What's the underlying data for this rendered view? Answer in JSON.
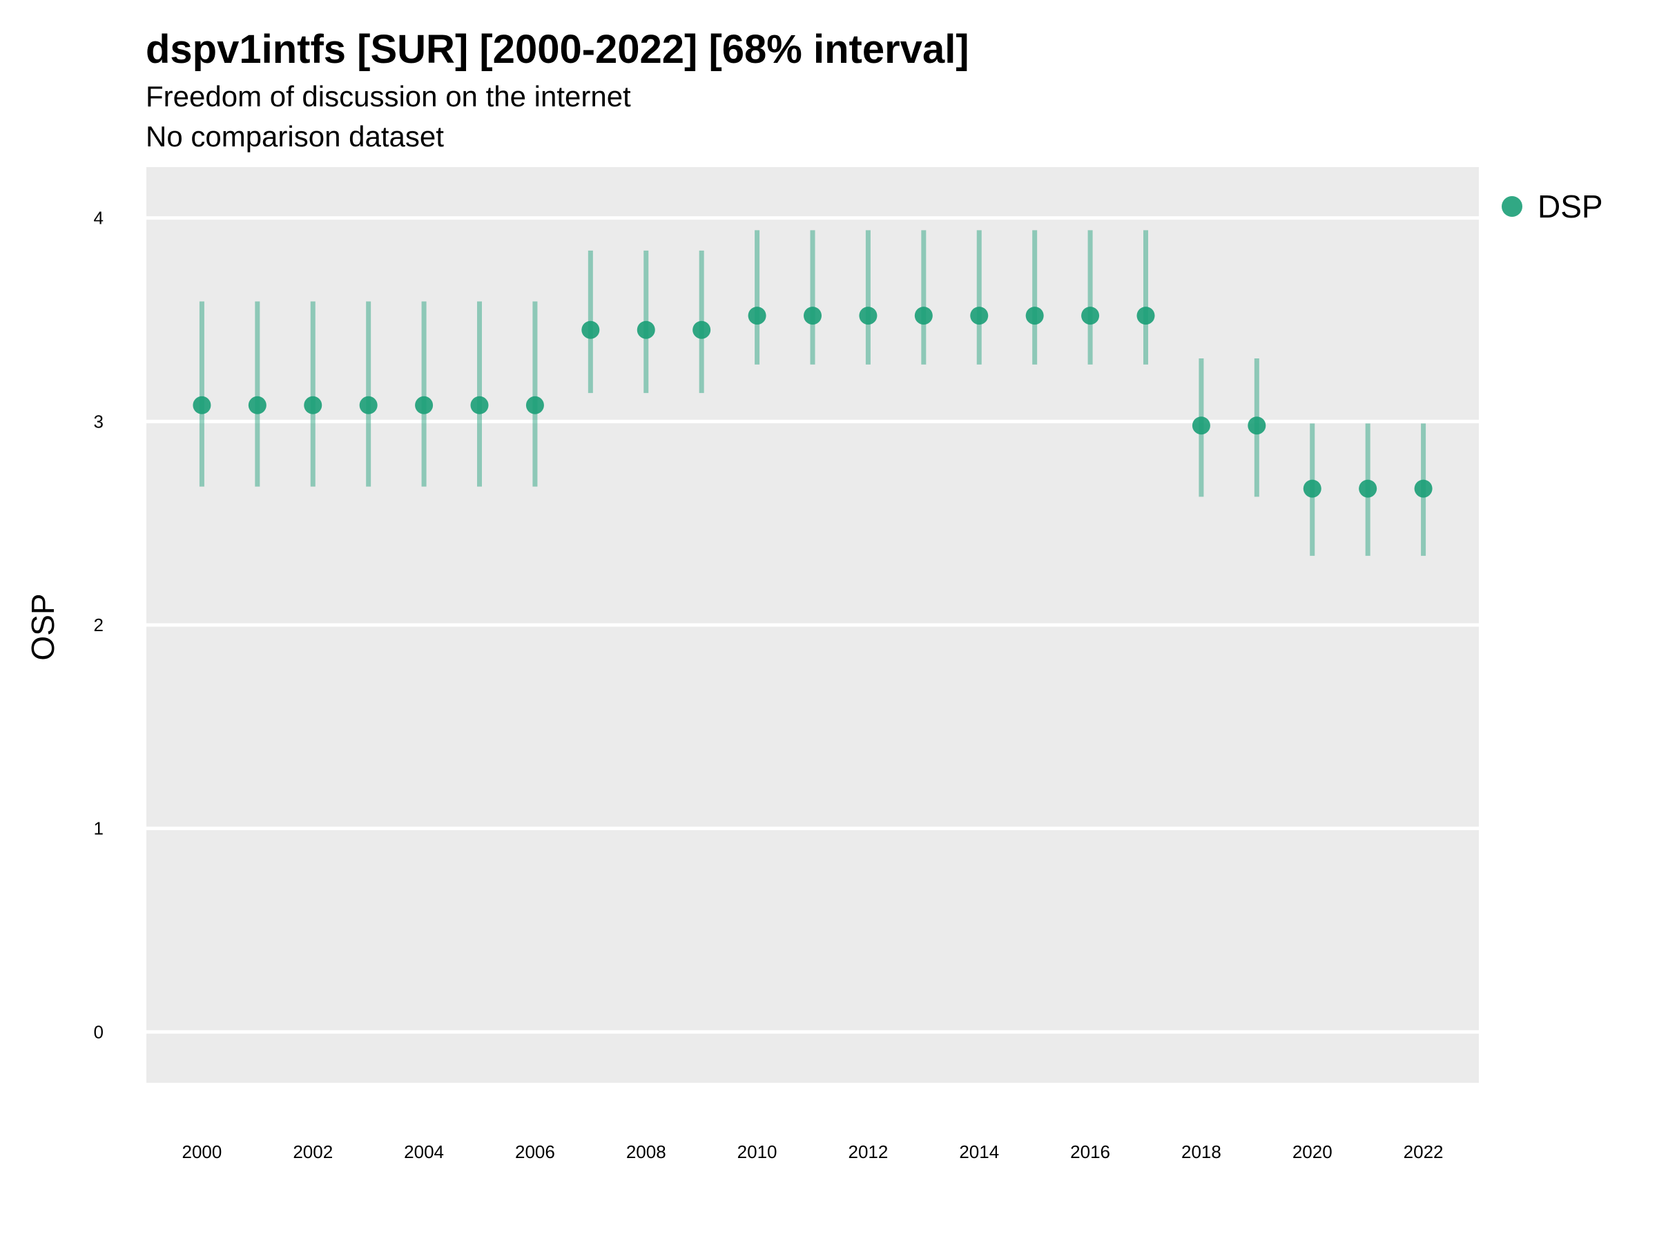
{
  "chart_data": {
    "type": "scatter",
    "title": "dspv1intfs [SUR] [2000-2022] [68% interval]",
    "subtitle": [
      "Freedom of discussion on the internet",
      "No comparison dataset"
    ],
    "xlabel": "",
    "ylabel": "OSP",
    "xlim": [
      1999.0,
      2023.0
    ],
    "ylim": [
      -0.25,
      4.25
    ],
    "x_ticks": [
      2000,
      2002,
      2004,
      2006,
      2008,
      2010,
      2012,
      2014,
      2016,
      2018,
      2020,
      2022
    ],
    "y_ticks": [
      0,
      1,
      2,
      3,
      4
    ],
    "grid": true,
    "legend": {
      "position": "top-right",
      "entries": [
        "DSP"
      ]
    },
    "colors": {
      "series": "#1b9e77",
      "panel": "#ebebeb",
      "grid": "#ffffff"
    },
    "series": [
      {
        "name": "DSP",
        "x": [
          2000,
          2001,
          2002,
          2003,
          2004,
          2005,
          2006,
          2007,
          2008,
          2009,
          2010,
          2011,
          2012,
          2013,
          2014,
          2015,
          2016,
          2017,
          2018,
          2019,
          2020,
          2021,
          2022
        ],
        "y": [
          3.08,
          3.08,
          3.08,
          3.08,
          3.08,
          3.08,
          3.08,
          3.45,
          3.45,
          3.45,
          3.52,
          3.52,
          3.52,
          3.52,
          3.52,
          3.52,
          3.52,
          3.52,
          2.98,
          2.98,
          2.67,
          2.67,
          2.67
        ],
        "lower": [
          2.68,
          2.68,
          2.68,
          2.68,
          2.68,
          2.68,
          2.68,
          3.14,
          3.14,
          3.14,
          3.28,
          3.28,
          3.28,
          3.28,
          3.28,
          3.28,
          3.28,
          3.28,
          2.63,
          2.63,
          2.34,
          2.34,
          2.34
        ],
        "upper": [
          3.59,
          3.59,
          3.59,
          3.59,
          3.59,
          3.59,
          3.59,
          3.84,
          3.84,
          3.84,
          3.94,
          3.94,
          3.94,
          3.94,
          3.94,
          3.94,
          3.94,
          3.94,
          3.31,
          3.31,
          2.99,
          2.99,
          2.99
        ]
      }
    ]
  }
}
